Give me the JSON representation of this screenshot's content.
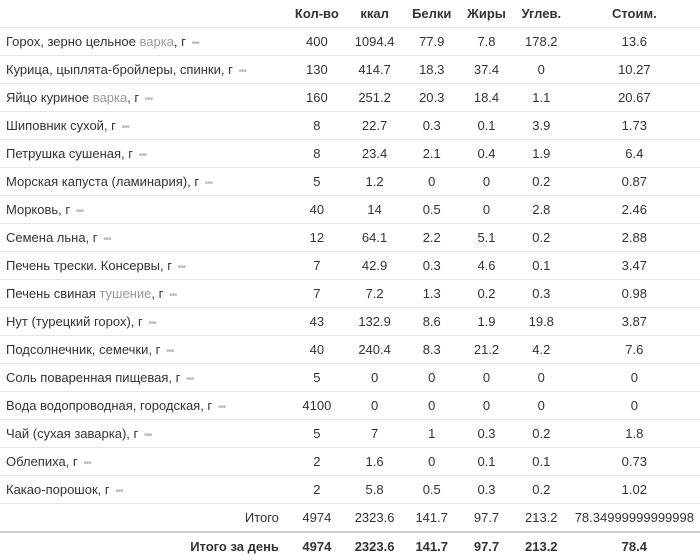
{
  "columns": {
    "name": "",
    "qty": "Кол-во",
    "kcal": "ккал",
    "protein": "Белки",
    "fat": "Жиры",
    "carb": "Углев.",
    "cost": "Стоим."
  },
  "dots": "•••",
  "rows": [
    {
      "name": "Горох, зерно цельное",
      "cook": "варка",
      "suffix": ", г",
      "qty": "400",
      "kcal": "1094.4",
      "protein": "77.9",
      "fat": "7.8",
      "carb": "178.2",
      "cost": "13.6"
    },
    {
      "name": "Курица, цыплята-бройлеры, спинки, г",
      "cook": "",
      "suffix": "",
      "qty": "130",
      "kcal": "414.7",
      "protein": "18.3",
      "fat": "37.4",
      "carb": "0",
      "cost": "10.27"
    },
    {
      "name": "Яйцо куриное",
      "cook": "варка",
      "suffix": ", г",
      "qty": "160",
      "kcal": "251.2",
      "protein": "20.3",
      "fat": "18.4",
      "carb": "1.1",
      "cost": "20.67"
    },
    {
      "name": "Шиповник сухой, г",
      "cook": "",
      "suffix": "",
      "qty": "8",
      "kcal": "22.7",
      "protein": "0.3",
      "fat": "0.1",
      "carb": "3.9",
      "cost": "1.73"
    },
    {
      "name": "Петрушка сушеная, г",
      "cook": "",
      "suffix": "",
      "qty": "8",
      "kcal": "23.4",
      "protein": "2.1",
      "fat": "0.4",
      "carb": "1.9",
      "cost": "6.4"
    },
    {
      "name": "Морская капуста (ламинария), г",
      "cook": "",
      "suffix": "",
      "qty": "5",
      "kcal": "1.2",
      "protein": "0",
      "fat": "0",
      "carb": "0.2",
      "cost": "0.87"
    },
    {
      "name": "Морковь, г",
      "cook": "",
      "suffix": "",
      "qty": "40",
      "kcal": "14",
      "protein": "0.5",
      "fat": "0",
      "carb": "2.8",
      "cost": "2.46"
    },
    {
      "name": "Семена льна, г",
      "cook": "",
      "suffix": "",
      "qty": "12",
      "kcal": "64.1",
      "protein": "2.2",
      "fat": "5.1",
      "carb": "0.2",
      "cost": "2.88"
    },
    {
      "name": "Печень трески. Консервы, г",
      "cook": "",
      "suffix": "",
      "qty": "7",
      "kcal": "42.9",
      "protein": "0.3",
      "fat": "4.6",
      "carb": "0.1",
      "cost": "3.47"
    },
    {
      "name": "Печень свиная",
      "cook": "тушение",
      "suffix": ", г",
      "qty": "7",
      "kcal": "7.2",
      "protein": "1.3",
      "fat": "0.2",
      "carb": "0.3",
      "cost": "0.98"
    },
    {
      "name": "Нут (турецкий горох), г",
      "cook": "",
      "suffix": "",
      "qty": "43",
      "kcal": "132.9",
      "protein": "8.6",
      "fat": "1.9",
      "carb": "19.8",
      "cost": "3.87"
    },
    {
      "name": "Подсолнечник, семечки, г",
      "cook": "",
      "suffix": "",
      "qty": "40",
      "kcal": "240.4",
      "protein": "8.3",
      "fat": "21.2",
      "carb": "4.2",
      "cost": "7.6"
    },
    {
      "name": "Соль поваренная пищевая, г",
      "cook": "",
      "suffix": "",
      "qty": "5",
      "kcal": "0",
      "protein": "0",
      "fat": "0",
      "carb": "0",
      "cost": "0"
    },
    {
      "name": "Вода водопроводная, городская, г",
      "cook": "",
      "suffix": "",
      "qty": "4100",
      "kcal": "0",
      "protein": "0",
      "fat": "0",
      "carb": "0",
      "cost": "0"
    },
    {
      "name": "Чай (сухая заварка), г",
      "cook": "",
      "suffix": "",
      "qty": "5",
      "kcal": "7",
      "protein": "1",
      "fat": "0.3",
      "carb": "0.2",
      "cost": "1.8"
    },
    {
      "name": "Облепиха, г",
      "cook": "",
      "suffix": "",
      "qty": "2",
      "kcal": "1.6",
      "protein": "0",
      "fat": "0.1",
      "carb": "0.1",
      "cost": "0.73"
    },
    {
      "name": "Какао-порошок, г",
      "cook": "",
      "suffix": "",
      "qty": "2",
      "kcal": "5.8",
      "protein": "0.5",
      "fat": "0.3",
      "carb": "0.2",
      "cost": "1.02"
    }
  ],
  "total": {
    "label": "Итого",
    "qty": "4974",
    "kcal": "2323.6",
    "protein": "141.7",
    "fat": "97.7",
    "carb": "213.2",
    "cost": "78.34999999999998"
  },
  "daytotal": {
    "label": "Итого за день",
    "qty": "4974",
    "kcal": "2323.6",
    "protein": "141.7",
    "fat": "97.7",
    "carb": "213.2",
    "cost": "78.4"
  }
}
